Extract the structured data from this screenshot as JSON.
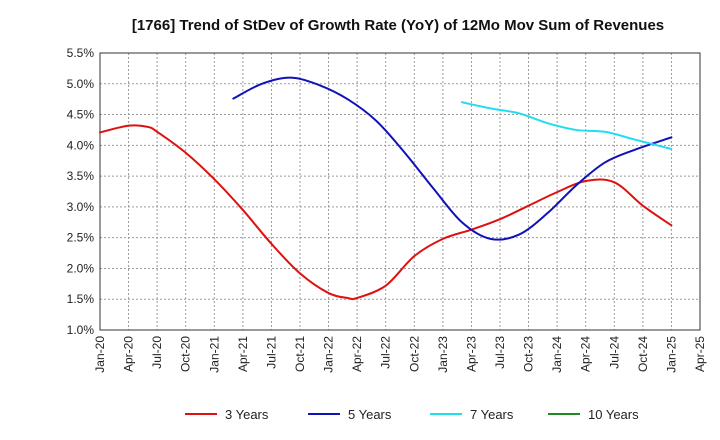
{
  "chart_data": {
    "type": "line",
    "title": "[1766]  Trend of StDev of Growth Rate (YoY) of 12Mo Mov Sum of Revenues",
    "xlabel": "",
    "ylabel": "",
    "ylim": [
      1.0,
      5.5
    ],
    "y_ticks": [
      "1.0%",
      "1.5%",
      "2.0%",
      "2.5%",
      "3.0%",
      "3.5%",
      "4.0%",
      "4.5%",
      "5.0%",
      "5.5%"
    ],
    "x_ticks": [
      "Jan-20",
      "Apr-20",
      "Jul-20",
      "Oct-20",
      "Jan-21",
      "Apr-21",
      "Jul-21",
      "Oct-21",
      "Jan-22",
      "Apr-22",
      "Jul-22",
      "Oct-22",
      "Jan-23",
      "Apr-23",
      "Jul-23",
      "Oct-23",
      "Jan-24",
      "Apr-24",
      "Jul-24",
      "Oct-24",
      "Jan-25",
      "Apr-25"
    ],
    "x_start": "Jan-20",
    "x_unit": "months since Jan-20",
    "grid": true,
    "legend_position": "bottom",
    "series": [
      {
        "name": "3 Years",
        "color": "#dd1111",
        "x": [
          0,
          3,
          5,
          6,
          9,
          12,
          15,
          18,
          21,
          24,
          26,
          27,
          30,
          33,
          36,
          39,
          42,
          45,
          48,
          51,
          54,
          57,
          60
        ],
        "values": [
          4.21,
          4.32,
          4.3,
          4.22,
          3.88,
          3.45,
          2.95,
          2.4,
          1.92,
          1.6,
          1.52,
          1.52,
          1.72,
          2.2,
          2.48,
          2.63,
          2.8,
          3.02,
          3.24,
          3.42,
          3.4,
          3.02,
          2.7
        ]
      },
      {
        "name": "5 Years",
        "color": "#1111bb",
        "x": [
          14,
          17,
          20,
          23,
          26,
          29,
          32,
          35,
          38,
          41,
          44,
          47,
          50,
          53,
          56,
          60
        ],
        "values": [
          4.76,
          5.0,
          5.1,
          4.98,
          4.75,
          4.4,
          3.88,
          3.3,
          2.75,
          2.48,
          2.55,
          2.9,
          3.35,
          3.72,
          3.92,
          4.13
        ]
      },
      {
        "name": "7 Years",
        "color": "#22ddee",
        "x": [
          38,
          41,
          44,
          47,
          50,
          53,
          56,
          59,
          60
        ],
        "values": [
          4.7,
          4.6,
          4.52,
          4.36,
          4.25,
          4.22,
          4.1,
          3.98,
          3.94
        ]
      },
      {
        "name": "10 Years",
        "color": "#228822",
        "x": [],
        "values": []
      }
    ]
  }
}
